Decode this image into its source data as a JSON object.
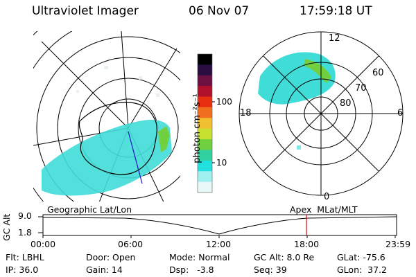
{
  "header": {
    "instrument": "Ultraviolet Imager",
    "date": "06 Nov 07",
    "time": "17:59:18 UT"
  },
  "colorbar": {
    "unit_label": "photon cm⁻²s⁻¹",
    "ticks": [
      "100",
      "10"
    ],
    "colors": [
      "#000000",
      "#2a0d40",
      "#6b1040",
      "#b0102a",
      "#e63010",
      "#f07020",
      "#f0c030",
      "#c8e030",
      "#70d040",
      "#30d0a0",
      "#20e0e0",
      "#a0f0f0",
      "#e8f8f8"
    ]
  },
  "polar_plot": {
    "mlt_labels": {
      "top": "12",
      "left": "18",
      "right": "6",
      "bottom": "0"
    },
    "lat_labels": [
      "60",
      "70",
      "80"
    ]
  },
  "map_labels": {
    "left": "Geographic Lat/Lon",
    "right": "Apex  MLat/MLT"
  },
  "altitude_chart": {
    "ylabel": "GC Alt",
    "y_ticks": [
      "9.0",
      "1.8"
    ],
    "x_ticks": [
      "00:00",
      "06:00",
      "12:00",
      "18:00",
      "23:59"
    ],
    "marker_time": "17:59:18",
    "accent_color": "#e00000"
  },
  "info": {
    "flt": "Flt: LBHL",
    "ip": "IP: 36.0",
    "door": "Door: Open",
    "gain": "Gain: 14",
    "mode": "Mode: Normal",
    "dsp": "Dsp:   -3.8",
    "gc_alt": "GC Alt: 8.0 Re",
    "seq": "Seq: 39",
    "glat": "GLat: -75.6",
    "glon": "GLon:  37.2"
  }
}
